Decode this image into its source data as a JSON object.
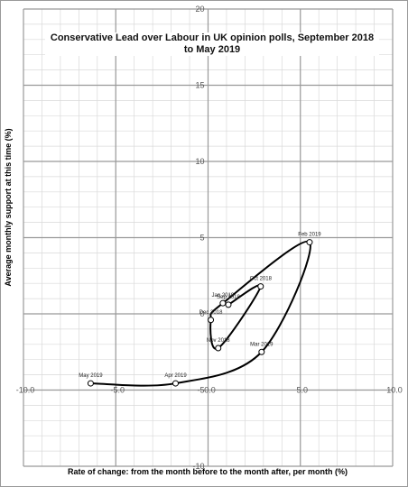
{
  "chart_data": {
    "type": "scatter",
    "title": "Conservative Lead over Labour in UK opinion polls, September 2018 to May 2019",
    "x_label": "Rate of change: from the month before to the month after, per month (%)",
    "y_label": "Average monthly support at this time (%)",
    "labels": [
      "Sep 2018",
      "Oct 2018",
      "Nov 2018",
      "Dec 2018",
      "Jan 2019",
      "Feb 2019",
      "Mar 2019",
      "Apr 2019",
      "May 2019"
    ],
    "x": [
      1.1,
      2.85,
      0.55,
      0.15,
      0.8,
      5.5,
      2.9,
      -1.76,
      -6.36
    ],
    "y": [
      0.6,
      1.8,
      -2.25,
      -0.4,
      0.7,
      4.7,
      -2.5,
      -4.56,
      -4.56
    ],
    "color": "#000000",
    "xlim": [
      -10,
      10
    ],
    "ylim": [
      -10,
      20
    ],
    "xticks": [
      {
        "value": -10,
        "label": "-10.0"
      },
      {
        "value": -5,
        "label": "-5.0"
      },
      {
        "value": 0,
        "label": "0.0"
      },
      {
        "value": 5,
        "label": "5.0"
      },
      {
        "value": 10,
        "label": "10.0"
      }
    ],
    "yticks": [
      -10,
      -5,
      0,
      5,
      10,
      15,
      20
    ],
    "grid": true
  }
}
